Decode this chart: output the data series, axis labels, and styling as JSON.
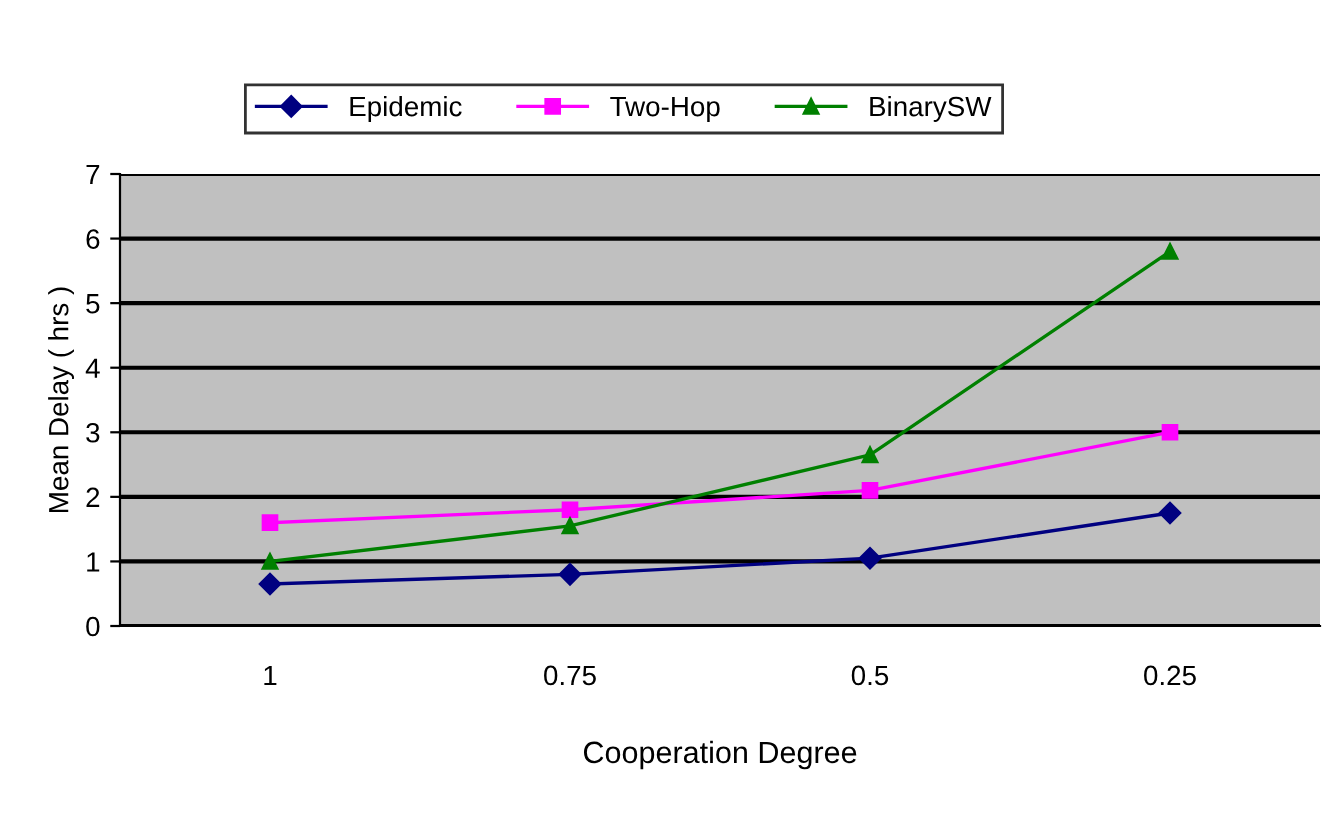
{
  "chart_data": {
    "type": "line",
    "xlabel": "Cooperation Degree",
    "ylabel": "Mean Delay ( hrs )",
    "categories": [
      "1",
      "0.75",
      "0.5",
      "0.25"
    ],
    "series": [
      {
        "name": "Epidemic",
        "color": "#000080",
        "marker": "diamond",
        "values": [
          0.65,
          0.8,
          1.05,
          1.75
        ]
      },
      {
        "name": "Two-Hop",
        "color": "#ff00ff",
        "marker": "square",
        "values": [
          1.6,
          1.8,
          2.1,
          3.0
        ]
      },
      {
        "name": "BinarySW",
        "color": "#008000",
        "marker": "triangle",
        "values": [
          1.0,
          1.55,
          2.65,
          5.8
        ]
      }
    ],
    "ylim": [
      0,
      7
    ],
    "yticks": [
      0,
      1,
      2,
      3,
      4,
      5,
      6,
      7
    ],
    "grid": "y",
    "legend": "top",
    "line_style": "solid"
  }
}
